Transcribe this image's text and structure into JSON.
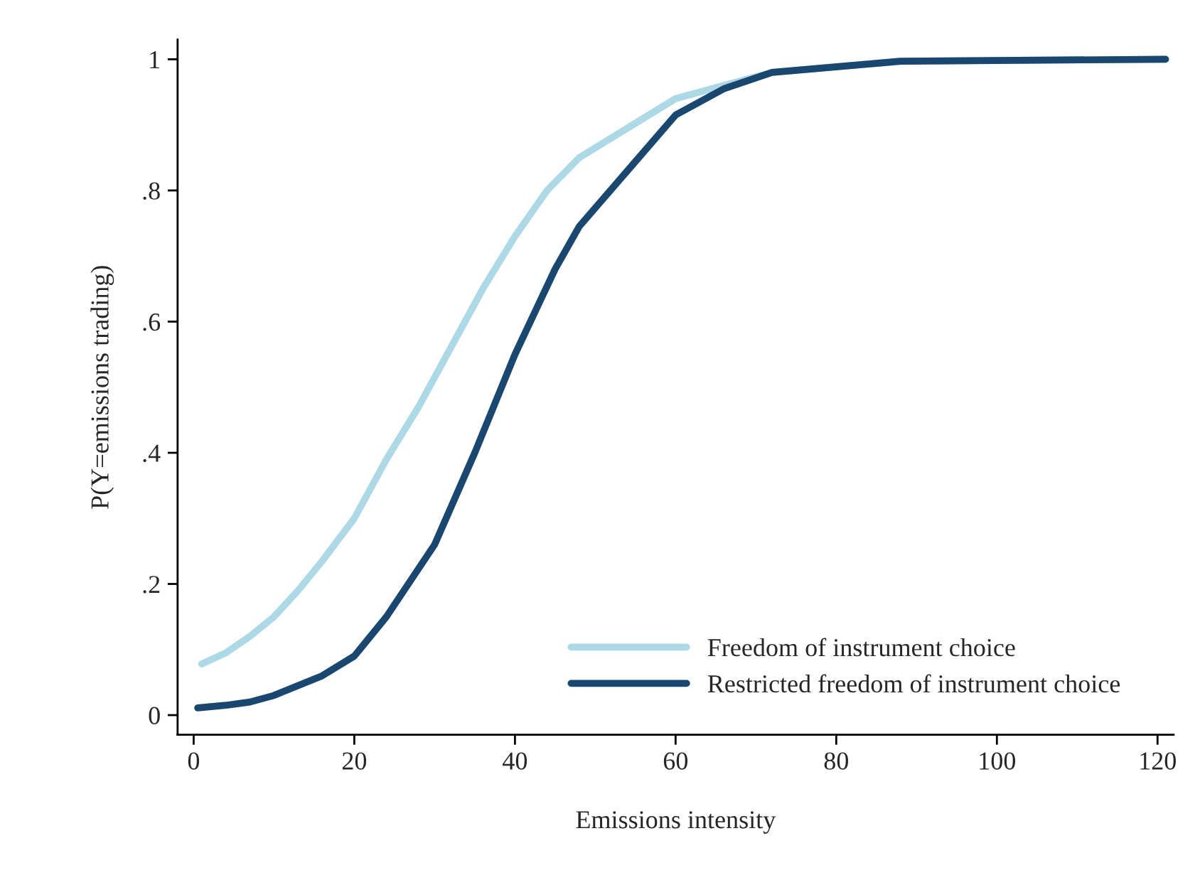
{
  "chart_data": {
    "type": "line",
    "xlabel": "Emissions intensity",
    "ylabel": "P(Y=emissions trading)",
    "xlim": [
      -2,
      122
    ],
    "xticks": [
      0,
      20,
      40,
      60,
      80,
      100,
      120
    ],
    "ylim": [
      -0.03,
      1.03
    ],
    "yticks": [
      0,
      {
        "value": 0.2,
        "label": ".2"
      },
      {
        "value": 0.4,
        "label": ".4"
      },
      {
        "value": 0.6,
        "label": ".6"
      },
      {
        "value": 0.8,
        "label": ".8"
      },
      1
    ],
    "grid": false,
    "legend": "bottom right",
    "marker": "none",
    "line_style": "solid",
    "series": [
      {
        "name": "Freedom of instrument choice",
        "color": "#add8e6",
        "x": [
          1,
          4,
          7,
          10,
          13,
          16,
          20,
          24,
          28,
          32,
          36,
          40,
          44,
          48,
          54,
          60,
          66,
          72,
          88,
          121
        ],
        "values": [
          0.078,
          0.095,
          0.12,
          0.15,
          0.19,
          0.235,
          0.3,
          0.39,
          0.47,
          0.56,
          0.65,
          0.73,
          0.8,
          0.85,
          0.895,
          0.94,
          0.96,
          0.98,
          0.997,
          1.0
        ]
      },
      {
        "name": "Restricted freedom of instrument choice",
        "color": "#1a476f",
        "x": [
          0.5,
          4,
          7,
          10,
          13,
          16,
          20,
          24,
          30,
          35,
          40,
          45,
          48,
          54,
          60,
          66,
          72,
          88,
          121
        ],
        "values": [
          0.011,
          0.015,
          0.02,
          0.03,
          0.045,
          0.06,
          0.09,
          0.15,
          0.26,
          0.4,
          0.55,
          0.68,
          0.745,
          0.83,
          0.915,
          0.955,
          0.98,
          0.997,
          1.0
        ]
      }
    ]
  }
}
